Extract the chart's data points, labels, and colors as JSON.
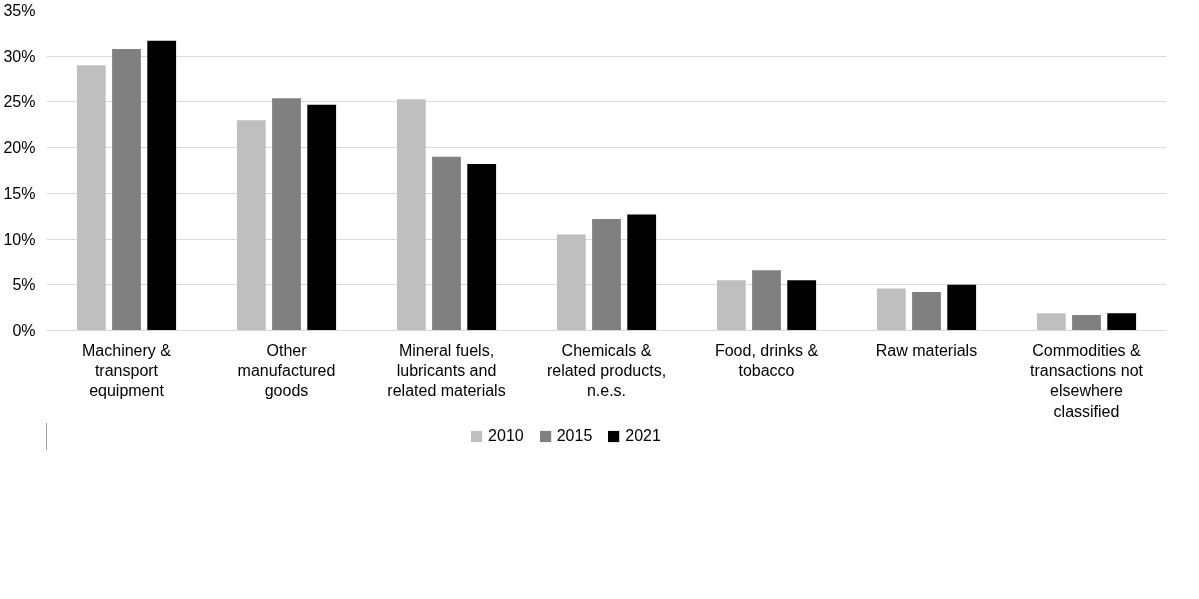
{
  "chart_data": {
    "type": "bar",
    "categories": [
      "Machinery & transport equipment",
      "Other manufactured goods",
      "Mineral fuels, lubricants and related materials",
      "Chemicals & related products, n.e.s.",
      "Food, drinks & tobacco",
      "Raw materials",
      "Commodities & transactions not elsewhere classified"
    ],
    "series": [
      {
        "name": "2010",
        "color": "#bfbfbf",
        "values": [
          29.0,
          23.0,
          25.3,
          10.5,
          5.5,
          4.6,
          1.9
        ]
      },
      {
        "name": "2015",
        "color": "#808080",
        "values": [
          30.8,
          25.4,
          19.0,
          12.2,
          6.6,
          4.2,
          1.7
        ]
      },
      {
        "name": "2021",
        "color": "#000000",
        "values": [
          31.7,
          24.7,
          18.2,
          12.7,
          5.5,
          5.0,
          1.9
        ]
      }
    ],
    "ylim": [
      0,
      35
    ],
    "yticks": [
      {
        "value": 0,
        "label": "0%"
      },
      {
        "value": 5,
        "label": "5%"
      },
      {
        "value": 10,
        "label": "10%"
      },
      {
        "value": 15,
        "label": "15%"
      },
      {
        "value": 20,
        "label": "20%"
      },
      {
        "value": 25,
        "label": "25%"
      },
      {
        "value": 30,
        "label": "30%"
      },
      {
        "value": 35,
        "label": "35%"
      }
    ],
    "grid": "y",
    "legend": "bottom"
  }
}
